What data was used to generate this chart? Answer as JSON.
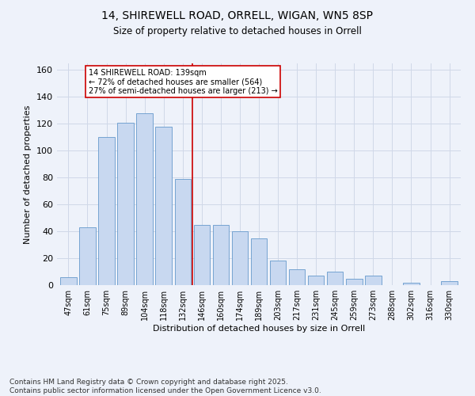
{
  "title1": "14, SHIREWELL ROAD, ORRELL, WIGAN, WN5 8SP",
  "title2": "Size of property relative to detached houses in Orrell",
  "xlabel": "Distribution of detached houses by size in Orrell",
  "ylabel": "Number of detached properties",
  "categories": [
    "47sqm",
    "61sqm",
    "75sqm",
    "89sqm",
    "104sqm",
    "118sqm",
    "132sqm",
    "146sqm",
    "160sqm",
    "174sqm",
    "189sqm",
    "203sqm",
    "217sqm",
    "231sqm",
    "245sqm",
    "259sqm",
    "273sqm",
    "288sqm",
    "302sqm",
    "316sqm",
    "330sqm"
  ],
  "values": [
    6,
    43,
    110,
    121,
    128,
    118,
    79,
    45,
    45,
    40,
    35,
    18,
    12,
    7,
    10,
    5,
    7,
    0,
    2,
    0,
    3
  ],
  "bar_color": "#c8d8f0",
  "bar_edge_color": "#6699cc",
  "grid_color": "#d0d8e8",
  "background_color": "#eef2fa",
  "marker_line_index": 6.5,
  "annotation_line1": "14 SHIREWELL ROAD: 139sqm",
  "annotation_line2": "← 72% of detached houses are smaller (564)",
  "annotation_line3": "27% of semi-detached houses are larger (213) →",
  "annotation_box_color": "#ffffff",
  "annotation_box_edge": "#cc0000",
  "marker_line_color": "#cc0000",
  "ylim": [
    0,
    165
  ],
  "yticks": [
    0,
    20,
    40,
    60,
    80,
    100,
    120,
    140,
    160
  ],
  "footer1": "Contains HM Land Registry data © Crown copyright and database right 2025.",
  "footer2": "Contains public sector information licensed under the Open Government Licence v3.0."
}
